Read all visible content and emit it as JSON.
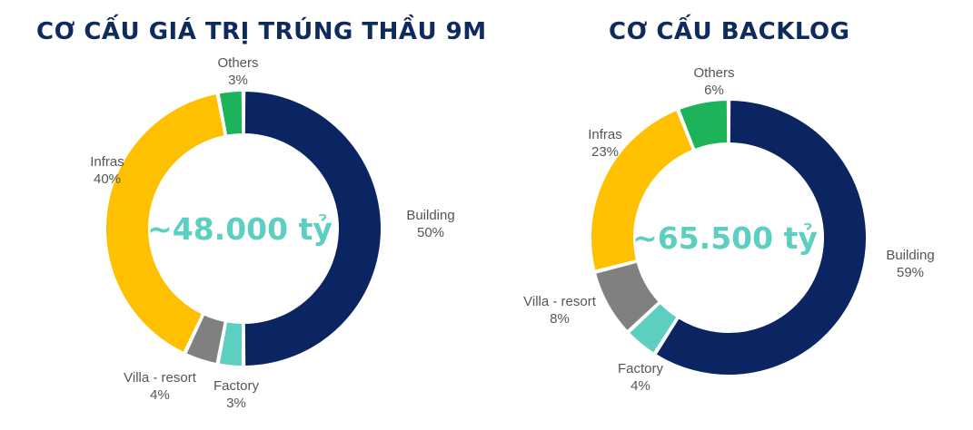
{
  "chart_data": [
    {
      "type": "pie",
      "title": "CƠ CẤU GIÁ TRỊ TRÚNG THẦU 9M",
      "center_label": "~48.000 tỷ",
      "slices": [
        {
          "name": "Building",
          "percent": "50%",
          "value": 50,
          "color": "#0a2561"
        },
        {
          "name": "Factory",
          "percent": "3%",
          "value": 3,
          "color": "#5ccfc1"
        },
        {
          "name": "Villa - resort",
          "percent": "4%",
          "value": 4,
          "color": "#808080"
        },
        {
          "name": "Infras",
          "percent": "40%",
          "value": 40,
          "color": "#ffc000"
        },
        {
          "name": "Others",
          "percent": "3%",
          "value": 3,
          "color": "#1db35a"
        }
      ]
    },
    {
      "type": "pie",
      "title": "CƠ CẤU BACKLOG",
      "center_label": "~65.500 tỷ",
      "slices": [
        {
          "name": "Building",
          "percent": "59%",
          "value": 59,
          "color": "#0a2561"
        },
        {
          "name": "Factory",
          "percent": "4%",
          "value": 4,
          "color": "#5ccfc1"
        },
        {
          "name": "Villa - resort",
          "percent": "8%",
          "value": 8,
          "color": "#808080"
        },
        {
          "name": "Infras",
          "percent": "23%",
          "value": 23,
          "color": "#ffc000"
        },
        {
          "name": "Others",
          "percent": "6%",
          "value": 6,
          "color": "#1db35a"
        }
      ]
    }
  ]
}
